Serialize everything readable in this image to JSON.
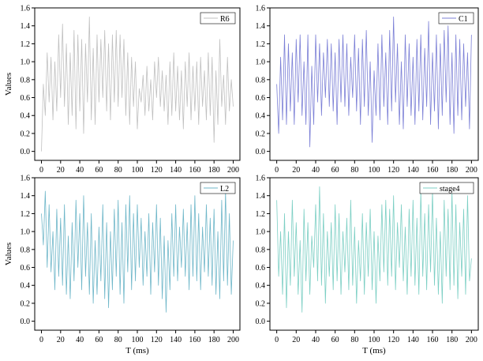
{
  "chart_data": [
    {
      "type": "line",
      "xlabel": "",
      "ylabel": "Values",
      "xlim": [
        -7,
        207
      ],
      "ylim": [
        -0.1,
        1.6
      ],
      "xticks": [
        0,
        20,
        40,
        60,
        80,
        100,
        120,
        140,
        160,
        180,
        200
      ],
      "yticks": [
        0.0,
        0.2,
        0.4,
        0.6,
        0.8,
        1.0,
        1.2,
        1.4,
        1.6
      ],
      "legend_position": "top-right",
      "series": [
        {
          "name": "R6",
          "color": "#c0c0c0",
          "x": [
            0,
            2,
            4,
            6,
            8,
            10,
            12,
            14,
            16,
            18,
            20,
            22,
            24,
            26,
            28,
            30,
            32,
            34,
            36,
            38,
            40,
            42,
            44,
            46,
            48,
            50,
            52,
            54,
            56,
            58,
            60,
            62,
            64,
            66,
            68,
            70,
            72,
            74,
            76,
            78,
            80,
            82,
            84,
            86,
            88,
            90,
            92,
            94,
            96,
            98,
            100,
            102,
            104,
            106,
            108,
            110,
            112,
            114,
            116,
            118,
            120,
            122,
            124,
            126,
            128,
            130,
            132,
            134,
            136,
            138,
            140,
            142,
            144,
            146,
            148,
            150,
            152,
            154,
            156,
            158,
            160,
            162,
            164,
            166,
            168,
            170,
            172,
            174,
            176,
            178,
            180,
            182,
            184,
            186,
            188,
            190,
            192,
            194,
            196,
            198,
            200
          ],
          "y": [
            0.0,
            0.75,
            0.4,
            1.1,
            0.55,
            1.05,
            0.35,
            1.0,
            0.45,
            1.3,
            0.6,
            1.42,
            0.5,
            1.2,
            0.3,
            1.1,
            0.4,
            1.35,
            0.25,
            1.3,
            0.45,
            1.25,
            0.2,
            1.2,
            0.55,
            1.5,
            0.35,
            1.15,
            0.3,
            1.3,
            0.55,
            1.25,
            0.6,
            1.35,
            0.45,
            1.2,
            0.35,
            1.3,
            0.55,
            1.35,
            0.5,
            1.3,
            0.6,
            1.25,
            0.4,
            1.1,
            0.3,
            1.05,
            0.5,
            1.0,
            0.25,
            0.7,
            0.55,
            0.85,
            0.4,
            0.95,
            0.45,
            0.8,
            0.35,
            1.0,
            0.6,
            1.05,
            0.5,
            0.9,
            0.45,
            0.85,
            0.3,
            1.0,
            0.4,
            1.1,
            0.45,
            0.95,
            0.35,
            0.9,
            0.25,
            1.0,
            0.5,
            1.1,
            0.35,
            0.95,
            0.45,
            1.0,
            0.3,
            1.05,
            0.5,
            0.9,
            0.35,
            1.1,
            0.4,
            1.05,
            0.1,
            0.9,
            0.3,
            1.25,
            0.5,
            0.85,
            0.3,
            1.05,
            0.45,
            0.8,
            0.5
          ]
        }
      ]
    },
    {
      "type": "line",
      "xlabel": "",
      "ylabel": "",
      "xlim": [
        -7,
        207
      ],
      "ylim": [
        -0.1,
        1.6
      ],
      "xticks": [
        0,
        20,
        40,
        60,
        80,
        100,
        120,
        140,
        160,
        180,
        200
      ],
      "yticks": [
        0.0,
        0.2,
        0.4,
        0.6,
        0.8,
        1.0,
        1.2,
        1.4,
        1.6
      ],
      "legend_position": "top-right",
      "series": [
        {
          "name": "C1",
          "color": "#7b7fd6",
          "x": [
            0,
            2,
            4,
            6,
            8,
            10,
            12,
            14,
            16,
            18,
            20,
            22,
            24,
            26,
            28,
            30,
            32,
            34,
            36,
            38,
            40,
            42,
            44,
            46,
            48,
            50,
            52,
            54,
            56,
            58,
            60,
            62,
            64,
            66,
            68,
            70,
            72,
            74,
            76,
            78,
            80,
            82,
            84,
            86,
            88,
            90,
            92,
            94,
            96,
            98,
            100,
            102,
            104,
            106,
            108,
            110,
            112,
            114,
            116,
            118,
            120,
            122,
            124,
            126,
            128,
            130,
            132,
            134,
            136,
            138,
            140,
            142,
            144,
            146,
            148,
            150,
            152,
            154,
            156,
            158,
            160,
            162,
            164,
            166,
            168,
            170,
            172,
            174,
            176,
            178,
            180,
            182,
            184,
            186,
            188,
            190,
            192,
            194,
            196,
            198,
            200
          ],
          "y": [
            0.75,
            0.2,
            1.05,
            0.35,
            1.3,
            0.3,
            1.2,
            0.45,
            1.1,
            0.3,
            1.25,
            0.55,
            1.3,
            0.4,
            1.0,
            0.3,
            1.3,
            0.05,
            0.95,
            0.3,
            1.3,
            0.55,
            1.2,
            0.4,
            1.1,
            0.6,
            1.25,
            0.5,
            1.2,
            0.45,
            1.1,
            0.3,
            1.25,
            0.55,
            1.3,
            0.5,
            1.2,
            0.4,
            1.05,
            0.6,
            1.3,
            0.45,
            1.15,
            0.3,
            1.25,
            0.5,
            1.35,
            0.4,
            1.0,
            0.1,
            0.9,
            0.4,
            1.2,
            0.35,
            1.3,
            0.5,
            1.1,
            0.3,
            1.35,
            0.45,
            1.5,
            0.55,
            1.2,
            0.3,
            1.0,
            0.25,
            1.3,
            0.5,
            1.2,
            0.4,
            1.05,
            0.3,
            1.25,
            0.45,
            1.3,
            0.35,
            1.15,
            0.5,
            1.45,
            0.3,
            1.1,
            0.45,
            1.3,
            0.25,
            1.2,
            0.4,
            1.35,
            0.55,
            1.4,
            0.3,
            1.1,
            0.2,
            1.3,
            0.4,
            1.25,
            0.35,
            1.2,
            0.5,
            1.1,
            0.25,
            1.3
          ]
        }
      ]
    },
    {
      "type": "line",
      "xlabel": "T (ms)",
      "ylabel": "Values",
      "xlim": [
        -7,
        207
      ],
      "ylim": [
        -0.1,
        1.6
      ],
      "xticks": [
        0,
        20,
        40,
        60,
        80,
        100,
        120,
        140,
        160,
        180,
        200
      ],
      "yticks": [
        0.0,
        0.2,
        0.4,
        0.6,
        0.8,
        1.0,
        1.2,
        1.4,
        1.6
      ],
      "legend_position": "top-right",
      "series": [
        {
          "name": "L2",
          "color": "#6fb7c9",
          "x": [
            0,
            2,
            4,
            6,
            8,
            10,
            12,
            14,
            16,
            18,
            20,
            22,
            24,
            26,
            28,
            30,
            32,
            34,
            36,
            38,
            40,
            42,
            44,
            46,
            48,
            50,
            52,
            54,
            56,
            58,
            60,
            62,
            64,
            66,
            68,
            70,
            72,
            74,
            76,
            78,
            80,
            82,
            84,
            86,
            88,
            90,
            92,
            94,
            96,
            98,
            100,
            102,
            104,
            106,
            108,
            110,
            112,
            114,
            116,
            118,
            120,
            122,
            124,
            126,
            128,
            130,
            132,
            134,
            136,
            138,
            140,
            142,
            144,
            146,
            148,
            150,
            152,
            154,
            156,
            158,
            160,
            162,
            164,
            166,
            168,
            170,
            172,
            174,
            176,
            178,
            180,
            182,
            184,
            186,
            188,
            190,
            192,
            194,
            196,
            198,
            200
          ],
          "y": [
            1.2,
            0.85,
            1.45,
            0.6,
            1.3,
            0.55,
            1.0,
            0.35,
            1.25,
            0.5,
            1.15,
            0.4,
            1.3,
            0.3,
            0.95,
            0.25,
            1.1,
            0.45,
            1.35,
            0.6,
            1.2,
            0.35,
            1.4,
            0.5,
            1.1,
            0.3,
            1.2,
            0.2,
            0.9,
            0.3,
            1.05,
            0.45,
            1.3,
            0.25,
            1.1,
            0.15,
            1.0,
            0.35,
            1.25,
            0.5,
            1.35,
            0.3,
            1.1,
            0.2,
            1.3,
            0.55,
            1.4,
            0.35,
            1.2,
            0.45,
            1.3,
            0.6,
            1.15,
            0.4,
            1.0,
            0.5,
            1.2,
            0.3,
            1.1,
            0.55,
            1.3,
            0.4,
            1.15,
            0.25,
            0.95,
            0.1,
            0.9,
            0.35,
            1.2,
            0.5,
            1.3,
            0.45,
            1.05,
            0.6,
            1.25,
            0.5,
            1.1,
            0.35,
            1.3,
            0.5,
            1.4,
            0.45,
            1.2,
            0.35,
            1.05,
            0.55,
            1.3,
            0.5,
            1.15,
            0.4,
            1.25,
            0.3,
            1.0,
            0.25,
            1.35,
            0.45,
            1.45,
            0.4,
            1.2,
            0.3,
            0.9
          ]
        }
      ]
    },
    {
      "type": "line",
      "xlabel": "T (ms)",
      "ylabel": "",
      "xlim": [
        -7,
        207
      ],
      "ylim": [
        -0.1,
        1.6
      ],
      "xticks": [
        0,
        20,
        40,
        60,
        80,
        100,
        120,
        140,
        160,
        180,
        200
      ],
      "yticks": [
        0.0,
        0.2,
        0.4,
        0.6,
        0.8,
        1.0,
        1.2,
        1.4,
        1.6
      ],
      "legend_position": "top-right",
      "series": [
        {
          "name": "stage4",
          "color": "#7ccfc4",
          "x": [
            0,
            2,
            4,
            6,
            8,
            10,
            12,
            14,
            16,
            18,
            20,
            22,
            24,
            26,
            28,
            30,
            32,
            34,
            36,
            38,
            40,
            42,
            44,
            46,
            48,
            50,
            52,
            54,
            56,
            58,
            60,
            62,
            64,
            66,
            68,
            70,
            72,
            74,
            76,
            78,
            80,
            82,
            84,
            86,
            88,
            90,
            92,
            94,
            96,
            98,
            100,
            102,
            104,
            106,
            108,
            110,
            112,
            114,
            116,
            118,
            120,
            122,
            124,
            126,
            128,
            130,
            132,
            134,
            136,
            138,
            140,
            142,
            144,
            146,
            148,
            150,
            152,
            154,
            156,
            158,
            160,
            162,
            164,
            166,
            168,
            170,
            172,
            174,
            176,
            178,
            180,
            182,
            184,
            186,
            188,
            190,
            192,
            194,
            196,
            198,
            200
          ],
          "y": [
            1.35,
            0.5,
            1.0,
            0.3,
            1.2,
            0.15,
            1.0,
            0.4,
            1.35,
            0.5,
            1.1,
            0.3,
            0.9,
            0.1,
            1.25,
            0.45,
            1.1,
            0.3,
            0.95,
            0.6,
            1.3,
            0.45,
            1.5,
            0.4,
            1.2,
            0.2,
            1.0,
            0.5,
            1.1,
            0.35,
            1.3,
            0.45,
            1.2,
            0.3,
            1.0,
            0.55,
            1.15,
            0.35,
            1.35,
            0.4,
            1.05,
            0.2,
            0.9,
            0.45,
            1.2,
            0.3,
            1.1,
            0.5,
            1.25,
            0.35,
            1.0,
            0.2,
            0.95,
            0.45,
            1.3,
            0.55,
            1.35,
            0.4,
            1.25,
            0.5,
            1.4,
            0.35,
            1.1,
            0.6,
            1.3,
            0.45,
            1.05,
            0.3,
            1.25,
            0.5,
            1.35,
            0.4,
            1.15,
            0.3,
            1.45,
            0.5,
            1.2,
            0.35,
            1.3,
            0.55,
            1.45,
            0.4,
            1.15,
            0.3,
            1.0,
            0.2,
            1.35,
            0.5,
            1.25,
            0.35,
            1.45,
            0.4,
            1.3,
            0.25,
            1.1,
            0.5,
            1.25,
            0.3,
            1.4,
            0.45,
            0.7
          ]
        }
      ]
    }
  ]
}
